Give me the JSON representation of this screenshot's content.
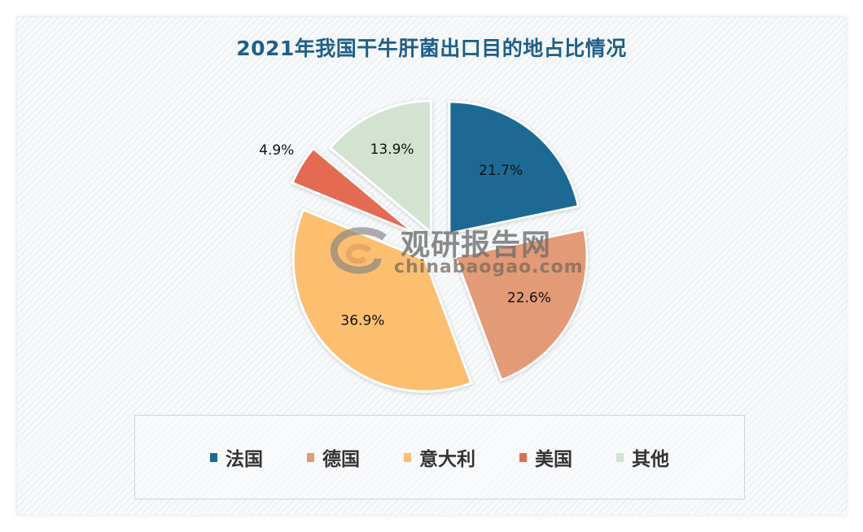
{
  "chart_data": {
    "type": "pie",
    "title": "2021年我国干牛肝菌出口目的地占比情况",
    "categories": [
      "法国",
      "德国",
      "意大利",
      "美国",
      "其他"
    ],
    "values": [
      21.7,
      22.6,
      36.9,
      4.9,
      13.9
    ],
    "unit": "%",
    "labels": [
      "21.7%",
      "22.6%",
      "36.9%",
      "4.9%",
      "13.9%"
    ],
    "colors": [
      "#1c6a94",
      "#e39a76",
      "#fcbf70",
      "#e56a52",
      "#d3e2d1"
    ],
    "exploded": true,
    "start_angle": "12 o'clock, clockwise",
    "legend_position": "bottom"
  },
  "title": "2021年我国干牛肝菌出口目的地占比情况",
  "legend": {
    "items": [
      {
        "label": "法国",
        "color": "#1c6a94"
      },
      {
        "label": "德国",
        "color": "#e39a76"
      },
      {
        "label": "意大利",
        "color": "#fcbf70"
      },
      {
        "label": "美国",
        "color": "#e56a52"
      },
      {
        "label": "其他",
        "color": "#d3e2d1"
      }
    ]
  },
  "watermark": {
    "name": "观研报告网",
    "domain": "chinabaogao.com"
  }
}
